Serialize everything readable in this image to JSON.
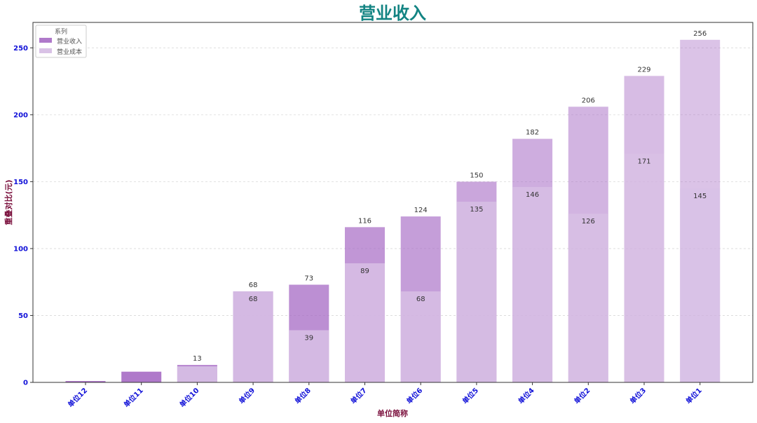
{
  "chart_data": {
    "type": "bar",
    "title": "营业收入",
    "xlabel": "单位简称",
    "ylabel": "重叠对比(元)",
    "categories": [
      "单位12",
      "单位11",
      "单位10",
      "单位9",
      "单位8",
      "单位7",
      "单位6",
      "单位5",
      "单位4",
      "单位2",
      "单位3",
      "单位1"
    ],
    "series": [
      {
        "name": "营业收入",
        "values": [
          1,
          8,
          13,
          68,
          73,
          116,
          124,
          150,
          182,
          206,
          229,
          256
        ]
      },
      {
        "name": "营业成本",
        "values": [
          0,
          0,
          12,
          68,
          39,
          89,
          68,
          135,
          146,
          126,
          171,
          145
        ]
      }
    ],
    "revenue_labels": [
      "",
      "",
      "13",
      "68",
      "73",
      "116",
      "124",
      "150",
      "182",
      "206",
      "229",
      "256"
    ],
    "cost_labels": [
      "",
      "",
      "",
      "68",
      "39",
      "89",
      "68",
      "135",
      "146",
      "126",
      "171",
      "145"
    ],
    "ylim": [
      0,
      269
    ],
    "yticks": [
      0,
      50,
      100,
      150,
      200,
      250
    ],
    "grid": true,
    "legend": {
      "title": "系列",
      "position": "top-left"
    },
    "colors": {
      "title": "#138483",
      "tick": "#1010d8",
      "axis_label": "#7a0f3c",
      "revenue": "#a66ac4",
      "cost": "#d9c2e6"
    }
  }
}
